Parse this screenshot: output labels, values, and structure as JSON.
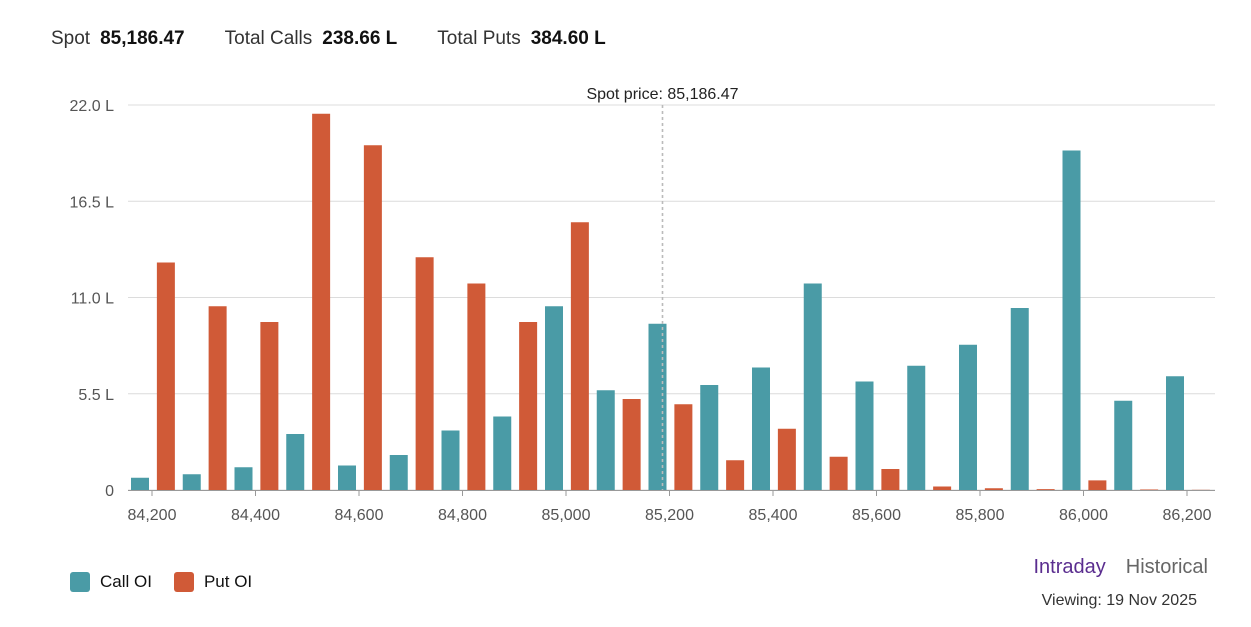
{
  "summary": {
    "spot_label": "Spot",
    "spot_value": "85,186.47",
    "calls_label": "Total Calls",
    "calls_value": "238.66 L",
    "puts_label": "Total Puts",
    "puts_value": "384.60 L"
  },
  "chart_data": {
    "type": "bar",
    "categories": [
      "84,200",
      "84,300",
      "84,400",
      "84,500",
      "84,600",
      "84,700",
      "84,800",
      "84,900",
      "85,000",
      "85,100",
      "85,200",
      "85,300",
      "85,400",
      "85,500",
      "85,600",
      "85,700",
      "85,800",
      "85,900",
      "86,000",
      "86,100",
      "86,200"
    ],
    "x_tick_labels": [
      "84,200",
      "84,400",
      "84,600",
      "84,800",
      "85,000",
      "85,200",
      "85,400",
      "85,600",
      "85,800",
      "86,000",
      "86,200"
    ],
    "y_ticks": [
      {
        "value": 0,
        "label": "0"
      },
      {
        "value": 5.5,
        "label": "5.5 L"
      },
      {
        "value": 11,
        "label": "11.0 L"
      },
      {
        "value": 16.5,
        "label": "16.5 L"
      },
      {
        "value": 22,
        "label": "22.0 L"
      }
    ],
    "ylim": [
      0,
      22
    ],
    "grid": true,
    "series": [
      {
        "name": "Call OI",
        "color": "#4a9ba6",
        "values": [
          0.7,
          0.9,
          1.3,
          3.2,
          1.4,
          2.0,
          3.4,
          4.2,
          10.5,
          5.7,
          9.5,
          6.0,
          7.0,
          11.8,
          6.2,
          7.1,
          8.3,
          10.4,
          19.4,
          5.1,
          6.5
        ]
      },
      {
        "name": "Put OI",
        "color": "#d05a37",
        "values": [
          13.0,
          10.5,
          9.6,
          21.5,
          19.7,
          13.3,
          11.8,
          9.6,
          15.3,
          5.2,
          4.9,
          1.7,
          3.5,
          1.9,
          1.2,
          0.2,
          0.1,
          0.05,
          0.55,
          0.03,
          0.01
        ]
      }
    ],
    "spot_marker": {
      "value": 85186.47,
      "label": "Spot price: 85,186.47"
    },
    "legend_position": "bottom-left"
  },
  "controls": {
    "intraday_label": "Intraday",
    "historical_label": "Historical",
    "viewing_text": "Viewing: 19 Nov 2025"
  }
}
